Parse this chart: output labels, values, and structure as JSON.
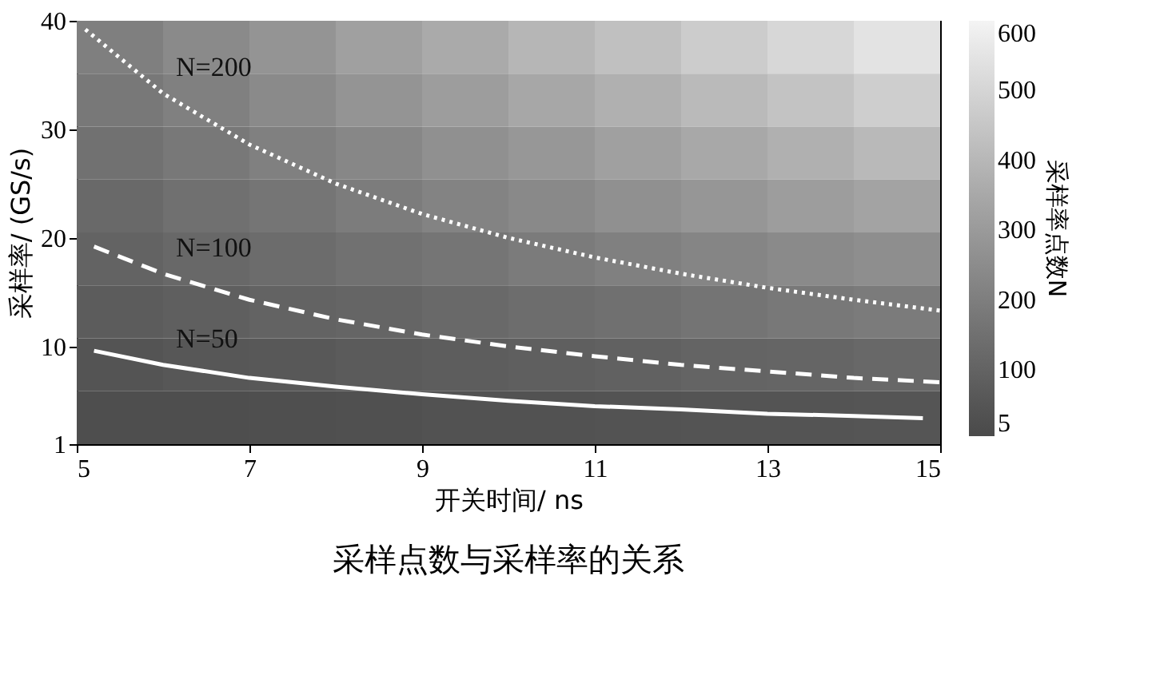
{
  "chart_data": {
    "type": "heatmap",
    "title": "采样点数与采样率的关系",
    "xlabel": "开关时间/ ns",
    "ylabel": "采样率/ (GS/s)",
    "clabel": "采样率点数N",
    "x": [
      5.5,
      6.5,
      7.5,
      8.5,
      9.5,
      10.5,
      11.5,
      12.5,
      13.5,
      14.5
    ],
    "cells": [
      [
        205,
        245,
        280,
        320,
        355,
        395,
        430,
        470,
        505,
        545
      ],
      [
        180,
        210,
        245,
        280,
        310,
        345,
        375,
        410,
        440,
        475
      ],
      [
        155,
        180,
        210,
        235,
        265,
        290,
        320,
        350,
        375,
        405
      ],
      [
        125,
        150,
        170,
        195,
        220,
        240,
        265,
        285,
        310,
        330
      ],
      [
        100,
        120,
        135,
        155,
        170,
        190,
        210,
        225,
        245,
        260
      ],
      [
        75,
        85,
        100,
        110,
        125,
        140,
        150,
        165,
        180,
        190
      ],
      [
        45,
        55,
        60,
        70,
        80,
        85,
        95,
        105,
        110,
        120
      ],
      [
        20,
        20,
        25,
        30,
        35,
        35,
        40,
        45,
        45,
        50
      ]
    ],
    "clim": [
      5,
      600
    ],
    "cticks": [
      5,
      100,
      200,
      300,
      400,
      500,
      600
    ],
    "xlim": [
      5,
      15
    ],
    "xticks": [
      5,
      7,
      9,
      11,
      13,
      15
    ],
    "ylim": [
      1,
      40
    ],
    "yticks": [
      1,
      10,
      20,
      30,
      40
    ],
    "series": [
      {
        "type": "line",
        "name": "N=200",
        "color": "#ffffff",
        "line_style": "dotted",
        "x": [
          5.1,
          6,
          7,
          8,
          9,
          10,
          11,
          12,
          13,
          14,
          15
        ],
        "values": [
          39.2,
          33.3,
          28.6,
          25,
          22.2,
          20,
          18.2,
          16.7,
          15.4,
          14.3,
          13.3
        ]
      },
      {
        "type": "line",
        "name": "N=100",
        "color": "#ffffff",
        "line_style": "dashed",
        "x": [
          5.2,
          6,
          7,
          8,
          9,
          10,
          11,
          12,
          13,
          14,
          15
        ],
        "values": [
          19.2,
          16.7,
          14.3,
          12.5,
          11.1,
          10,
          9.1,
          8.3,
          7.7,
          7.1,
          6.7
        ]
      },
      {
        "type": "line",
        "name": "N=50",
        "color": "#ffffff",
        "line_style": "solid",
        "x": [
          5.2,
          6,
          7,
          8,
          9,
          10,
          11,
          12,
          13,
          14,
          14.8
        ],
        "values": [
          9.6,
          8.3,
          7.1,
          6.3,
          5.6,
          5,
          4.5,
          4.2,
          3.8,
          3.6,
          3.4
        ]
      }
    ],
    "grid": false,
    "legend": false
  }
}
